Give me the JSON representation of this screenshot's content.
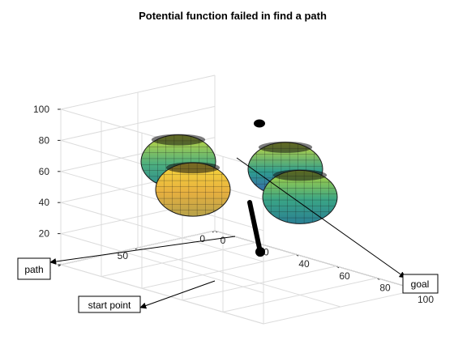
{
  "chart_data": {
    "type": "scatter",
    "title": "Potential function failed in find a path",
    "xlabel": "",
    "ylabel": "",
    "zlabel": "",
    "xlim": [
      0,
      100
    ],
    "ylim": [
      0,
      100
    ],
    "zlim": [
      0,
      100
    ],
    "x_ticks": [
      0,
      20,
      40,
      60,
      80,
      100
    ],
    "y_ticks": [
      0,
      50,
      100
    ],
    "z_ticks": [
      0,
      20,
      40,
      60,
      80,
      100
    ],
    "grid": true,
    "obstacles": [
      {
        "center": [
          50,
          20,
          50
        ],
        "color_top": "#c8d83c",
        "color_mid": "#2e9d8f",
        "color_bottom": "#3a62b0"
      },
      {
        "center": [
          20,
          50,
          50
        ],
        "color_top": "#c8d83c",
        "color_mid": "#4cae7f",
        "color_bottom": "#2a8a8f"
      },
      {
        "center": [
          80,
          50,
          50
        ],
        "color_top": "#b5d63c",
        "color_mid": "#3aa585",
        "color_bottom": "#2a7f93"
      },
      {
        "center": [
          50,
          80,
          50
        ],
        "color_top": "#f6d83a",
        "color_mid": "#e7b03f",
        "color_bottom": "#b7a24a"
      }
    ],
    "path": {
      "start": [
        30,
        10,
        0
      ],
      "end": [
        40,
        30,
        40
      ],
      "color": "#000000"
    },
    "goal": [
      50,
      50,
      50
    ],
    "annotations": [
      {
        "text": "path",
        "target": "path"
      },
      {
        "text": "start point",
        "target": "start"
      },
      {
        "text": "goal",
        "target": "goal"
      }
    ]
  }
}
